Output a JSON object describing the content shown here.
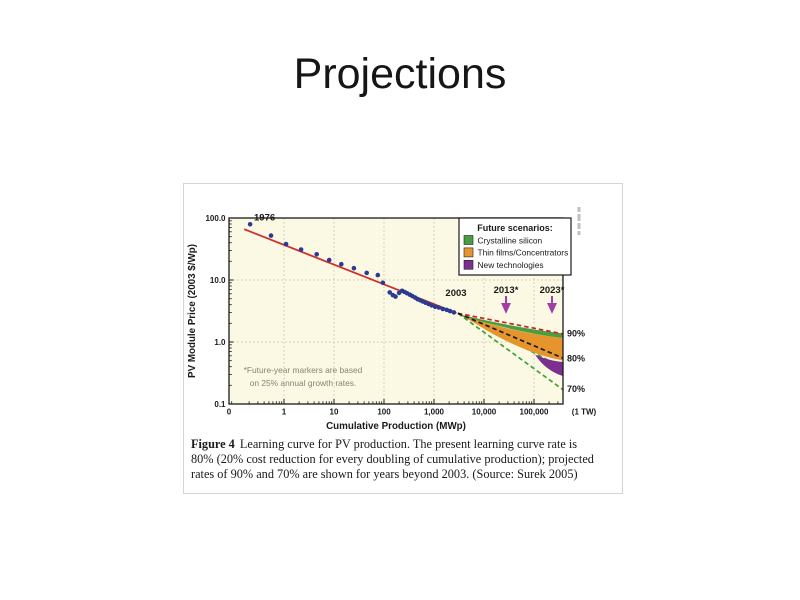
{
  "slide": {
    "title": "Projections"
  },
  "figure": {
    "caption_label": "Figure 4",
    "caption_text": "Learning curve for PV production. The present learning curve rate is 80% (20% cost reduction for every doubling of cumulative production); projected rates of 90% and 70% are shown for years beyond 2003. (Source: Surek 2005)"
  },
  "chart_data": {
    "type": "scatter",
    "xlabel": "Cumulative Production (MWp)",
    "ylabel": "PV Module Price (2003 $/Wp)",
    "x_scale": "log",
    "y_scale": "log",
    "x_ticks": [
      {
        "label": "0",
        "value": null
      },
      {
        "label": "1",
        "value": 1
      },
      {
        "label": "10",
        "value": 10
      },
      {
        "label": "100",
        "value": 100
      },
      {
        "label": "1,000",
        "value": 1000
      },
      {
        "label": "10,000",
        "value": 10000
      },
      {
        "label": "100,000",
        "value": 100000
      },
      {
        "label": "(1 TW)",
        "value": 1000000
      }
    ],
    "y_ticks": [
      {
        "label": "100.0",
        "value": 100
      },
      {
        "label": "10.0",
        "value": 10
      },
      {
        "label": "1.0",
        "value": 1
      },
      {
        "label": "0.1",
        "value": 0.1
      }
    ],
    "x_gridline_values": [
      1,
      10,
      100,
      1000,
      10000,
      100000
    ],
    "y_gridline_values": [
      10,
      1
    ],
    "series_historical": {
      "name": "Historical PV module prices 1976-2003",
      "color": "#2b3b92",
      "points": [
        [
          0.21,
          79
        ],
        [
          0.55,
          52
        ],
        [
          1.1,
          38
        ],
        [
          2.2,
          31
        ],
        [
          4.5,
          26
        ],
        [
          8,
          21
        ],
        [
          14,
          18
        ],
        [
          25,
          15.5
        ],
        [
          45,
          13
        ],
        [
          75,
          12
        ],
        [
          95,
          9
        ],
        [
          130,
          6.3
        ],
        [
          150,
          5.7
        ],
        [
          170,
          5.4
        ],
        [
          200,
          6.2
        ],
        [
          230,
          6.7
        ],
        [
          260,
          6.4
        ],
        [
          290,
          6.1
        ],
        [
          330,
          5.8
        ],
        [
          370,
          5.5
        ],
        [
          420,
          5.2
        ],
        [
          470,
          4.9
        ],
        [
          530,
          4.7
        ],
        [
          600,
          4.5
        ],
        [
          680,
          4.3
        ],
        [
          780,
          4.1
        ],
        [
          900,
          3.9
        ],
        [
          1050,
          3.7
        ],
        [
          1250,
          3.6
        ],
        [
          1500,
          3.4
        ],
        [
          1800,
          3.3
        ],
        [
          2100,
          3.15
        ],
        [
          2500,
          3.0
        ]
      ]
    },
    "fit_line": {
      "name": "80% learning curve (historical fit)",
      "color": "#cf2e2e",
      "from": [
        0.16,
        66
      ],
      "to": [
        2800,
        2.95
      ]
    },
    "projection_start": [
      3000,
      2.9
    ],
    "projections": [
      {
        "label": "90%",
        "color": "#cc2222",
        "end_price": 1.35
      },
      {
        "label": "80%",
        "color": "#1a1a1a",
        "end_price": 0.55
      },
      {
        "label": "70%",
        "color": "#3da23d",
        "end_price": 0.17
      }
    ],
    "legend_title": "Future scenarios:",
    "scenarios": [
      {
        "label": "Crystalline silicon",
        "color": "#4a9e42"
      },
      {
        "label": "Thin films/Concentrators",
        "color": "#e5952b"
      },
      {
        "label": "New technologies",
        "color": "#7c2f8e"
      }
    ],
    "annotations": {
      "start_year": "1976",
      "present_year": "2003",
      "future_marker_1": "2013*",
      "future_marker_2": "2023*",
      "marker_color": "#a23fa2",
      "note_line1": "*Future-year markers are based",
      "note_line2": "on 25% annual growth rates."
    },
    "colors": {
      "plot_bg": "#fbf9e3",
      "grid": "#ccc7ad"
    }
  }
}
